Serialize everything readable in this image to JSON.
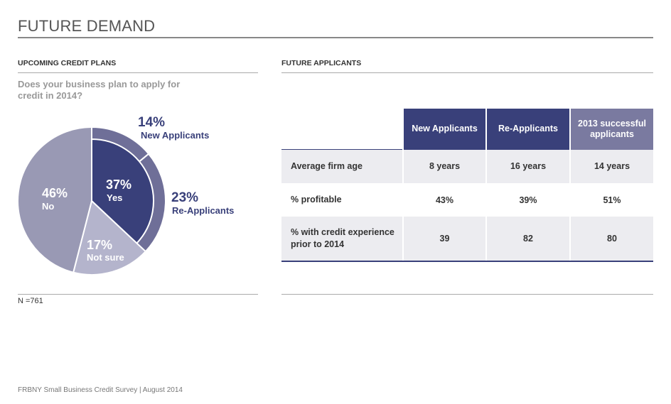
{
  "page": {
    "title": "FUTURE DEMAND",
    "footer": "FRBNY Small Business Credit Survey  |  August 2014"
  },
  "left_panel": {
    "heading": "UPCOMING CREDIT PLANS",
    "question": "Does your business plan to apply for credit in 2014?",
    "n_label": "N =761"
  },
  "right_panel": {
    "heading": "FUTURE APPLICANTS"
  },
  "chart_data": [
    {
      "type": "pie",
      "title": "",
      "slices": [
        {
          "label": "Yes",
          "pct_text": "37%",
          "value": 37,
          "color": "#39407a"
        },
        {
          "label": "Not sure",
          "pct_text": "17%",
          "value": 17,
          "color": "#b4b4cc"
        },
        {
          "label": "No",
          "pct_text": "46%",
          "value": 46,
          "color": "#9999b4"
        }
      ],
      "outer_ring": [
        {
          "label": "New Applicants",
          "pct_text": "14%",
          "value": 14,
          "color": "#6f6f98"
        },
        {
          "label": "Re-Applicants",
          "pct_text": "23%",
          "value": 23,
          "color": "#6f6f98"
        }
      ]
    },
    {
      "type": "table",
      "columns": [
        "",
        "New Applicants",
        "Re-Applicants",
        "2013 successful applicants"
      ],
      "rows": [
        {
          "label": "Average firm age",
          "values": [
            "8 years",
            "16 years",
            "14 years"
          ]
        },
        {
          "label": "% profitable",
          "values": [
            "43%",
            "39%",
            "51%"
          ]
        },
        {
          "label": "% with credit experience prior to 2014",
          "values": [
            "39",
            "82",
            "80"
          ]
        }
      ]
    }
  ]
}
